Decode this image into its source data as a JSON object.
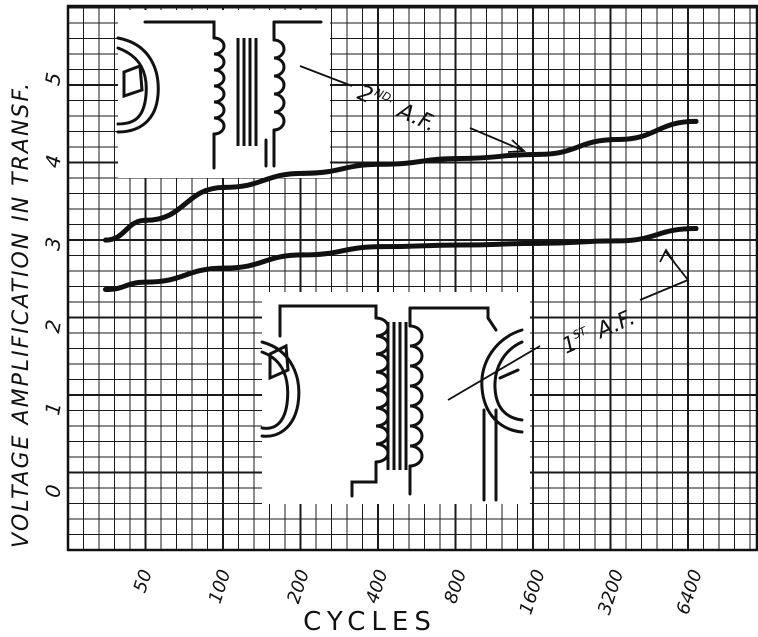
{
  "chart_data": {
    "type": "line",
    "title": "",
    "ylabel": "VOLTAGE AMPLIFICATION IN TRANSF.",
    "xlabel": "CYCLES",
    "x_scale": "log",
    "x_ticks": [
      "50",
      "100",
      "200",
      "400",
      "800",
      "1600",
      "3200",
      "6400"
    ],
    "y_ticks": [
      "0",
      "1",
      "2",
      "3",
      "4",
      "5"
    ],
    "ylim": [
      -0.7,
      5.9
    ],
    "grid": true,
    "series": [
      {
        "name": "2ND. A.F.",
        "x": [
          35,
          50,
          100,
          200,
          400,
          800,
          1600,
          3200,
          6400
        ],
        "y": [
          3.06,
          3.3,
          3.7,
          3.87,
          3.98,
          4.05,
          4.1,
          4.28,
          4.5
        ]
      },
      {
        "name": "1ST. A.F.",
        "x": [
          35,
          50,
          100,
          200,
          400,
          800,
          1600,
          3200,
          6400
        ],
        "y": [
          2.46,
          2.55,
          2.72,
          2.88,
          2.98,
          3.0,
          3.02,
          3.05,
          3.2
        ]
      }
    ],
    "annotations": [
      {
        "series": "2ND. A.F.",
        "label_main": "2",
        "label_sup": "ND.",
        "label_rest": "A.F."
      },
      {
        "series": "1ST. A.F.",
        "label_main": "1",
        "label_sup": "ST.",
        "label_rest": "A.F."
      }
    ],
    "colors": {
      "ink": "#111111",
      "grid": "#1a1a1a",
      "background": "#ffffff"
    }
  }
}
